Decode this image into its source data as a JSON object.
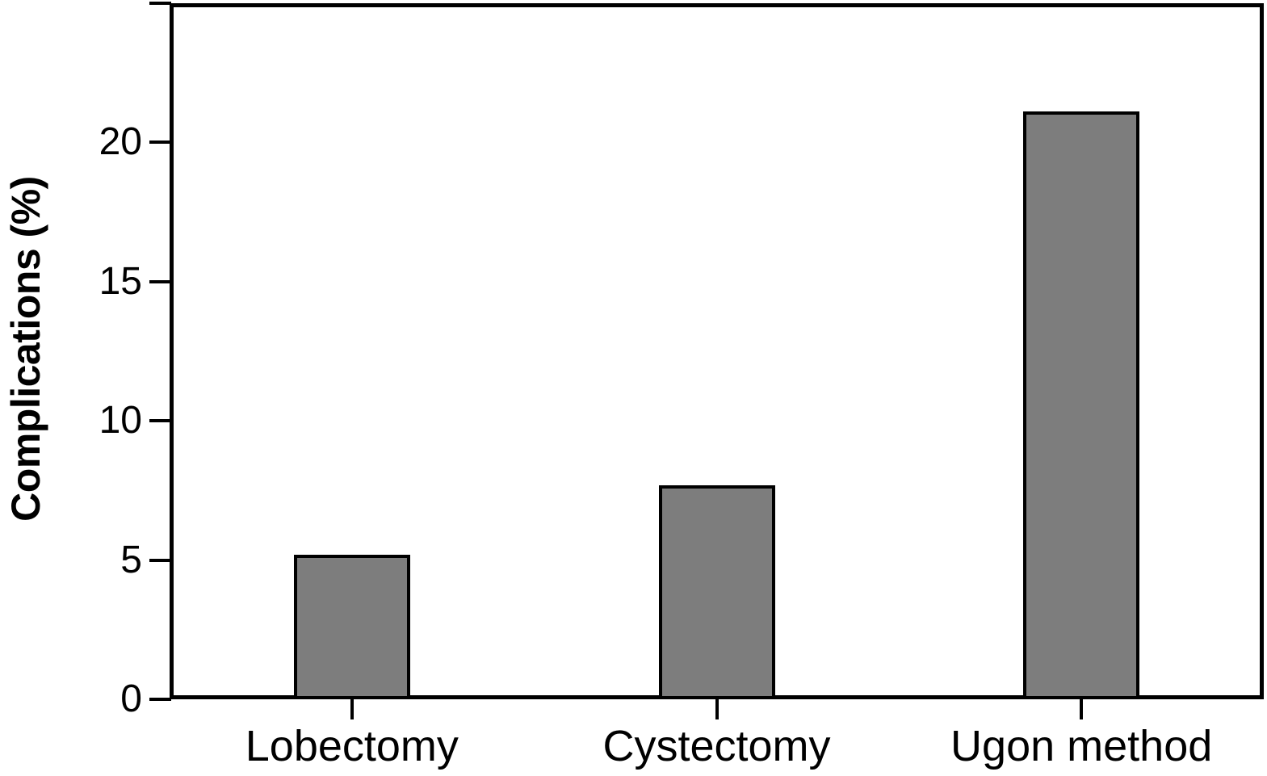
{
  "chart_data": {
    "type": "bar",
    "categories": [
      "Lobectomy",
      "Cystectomy",
      "Ugon method"
    ],
    "values": [
      5.2,
      7.7,
      21.1
    ],
    "title": "",
    "xlabel": "",
    "ylabel": "Complications (%)",
    "ylim": [
      0,
      25
    ],
    "yticks": [
      0,
      5,
      10,
      15,
      20
    ],
    "grid": false,
    "legend": "none",
    "bar_color": "#7d7d7d",
    "bar_border_color": "#000000",
    "axis_color": "#000000",
    "background_color": "#ffffff"
  }
}
